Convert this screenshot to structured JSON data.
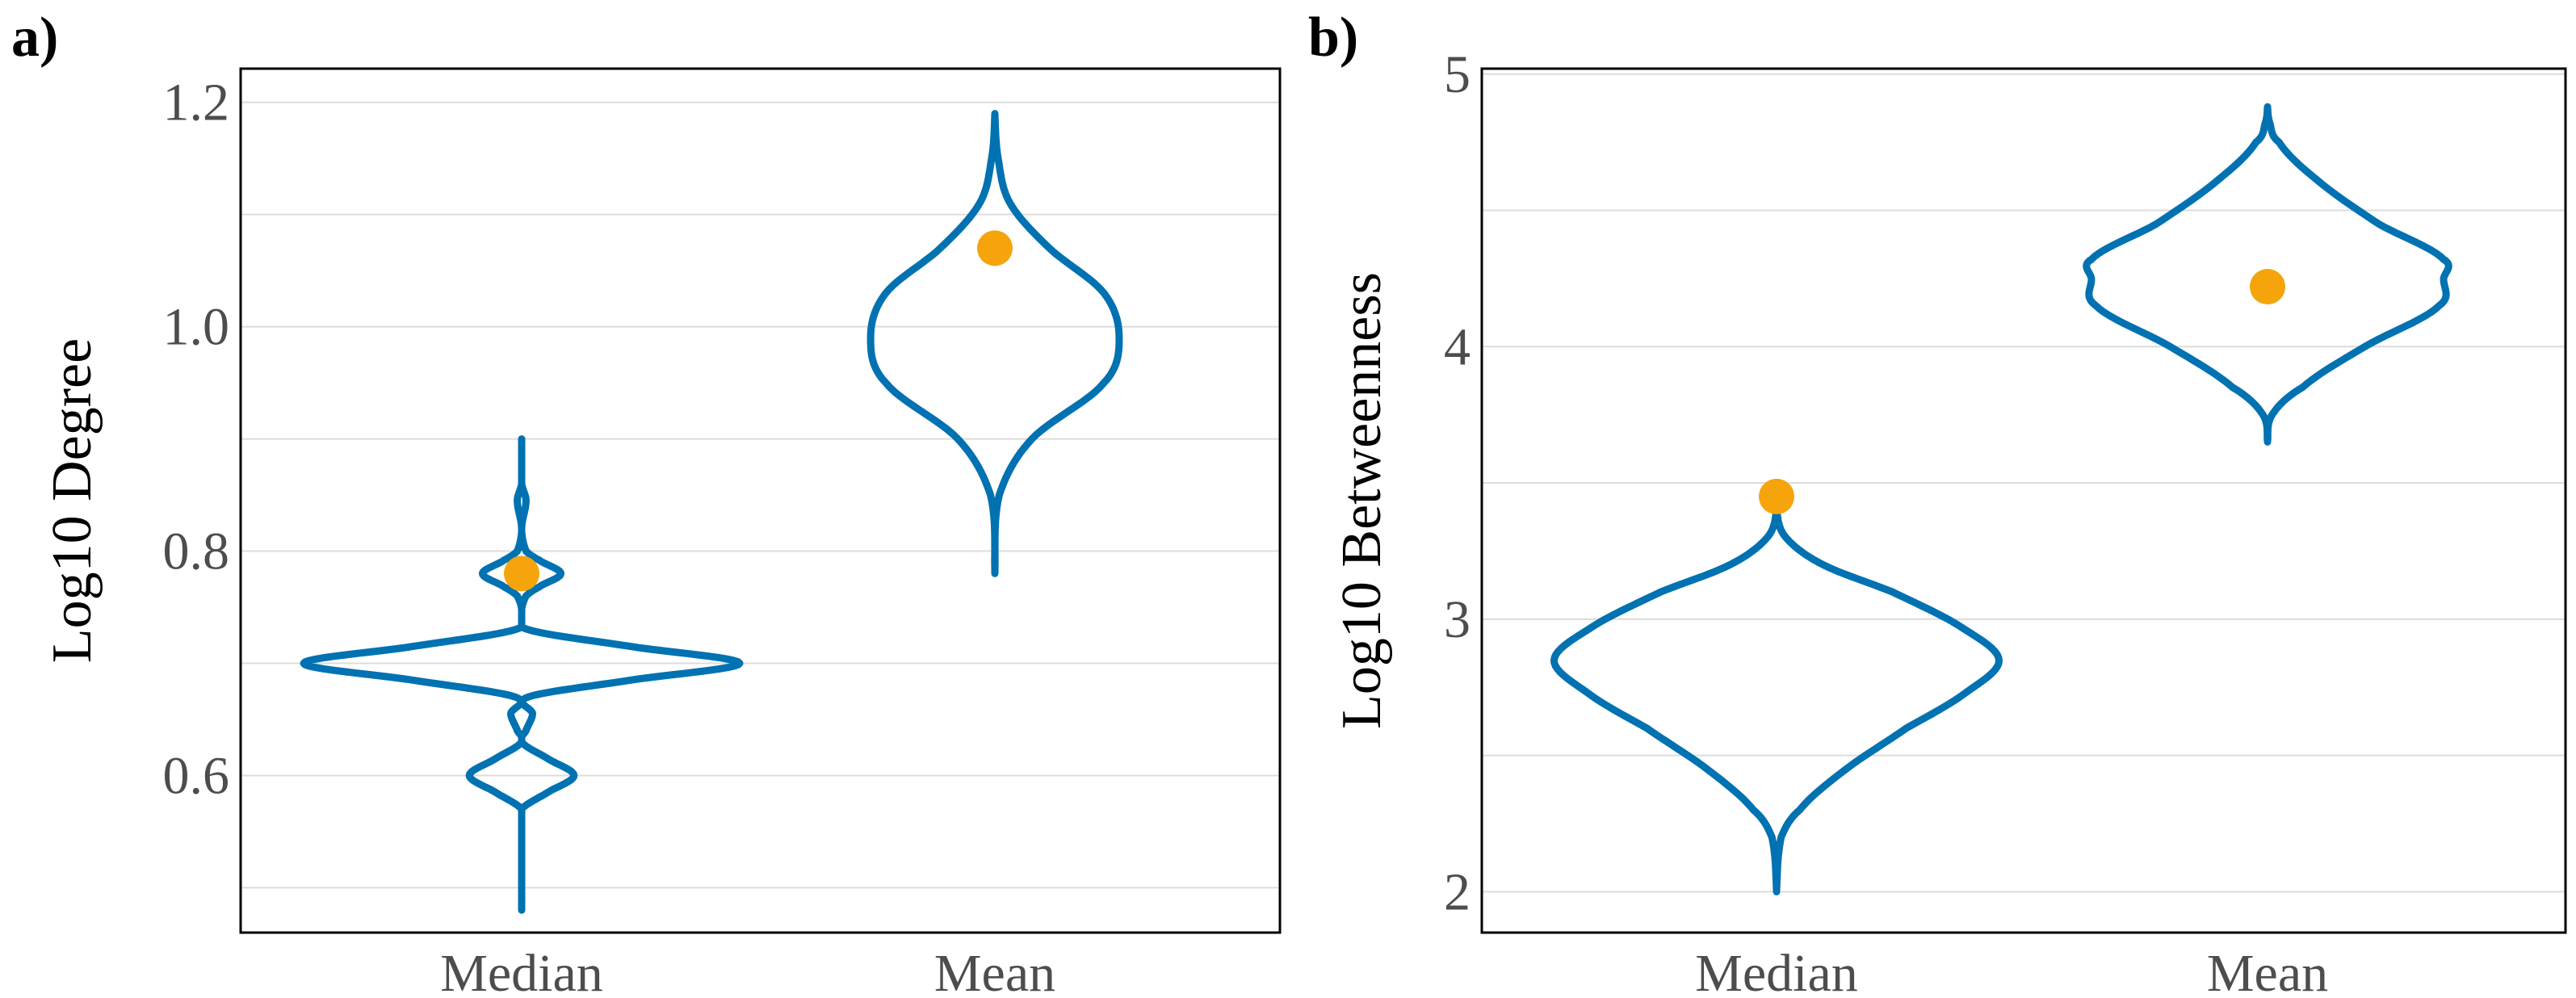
{
  "colors": {
    "violin": "#0072b2",
    "point": "#f5a40c",
    "grid": "#dcdcdc",
    "tick_text": "#4d4d4d",
    "frame": "#000000"
  },
  "chart_data": [
    {
      "panel_label": "a)",
      "type": "violin",
      "ylabel": "Log10 Degree",
      "categories": [
        "Median",
        "Mean"
      ],
      "ylim": [
        0.46,
        1.23
      ],
      "y_ticks": [
        0.6,
        0.8,
        1.0,
        1.2
      ],
      "y_tick_labels": [
        "0.6",
        "0.8",
        "1.0",
        "1.2"
      ],
      "y_minor_grid": [
        0.5,
        0.7,
        0.9,
        1.1
      ],
      "grid": true,
      "series": [
        {
          "category": "Median",
          "point_value": 0.78,
          "density": [
            [
              0.48,
              0.0
            ],
            [
              0.57,
              0.0
            ],
            [
              0.585,
              0.12
            ],
            [
              0.6,
              0.24
            ],
            [
              0.615,
              0.12
            ],
            [
              0.63,
              0.0
            ],
            [
              0.64,
              0.02
            ],
            [
              0.655,
              0.05
            ],
            [
              0.67,
              0.03
            ],
            [
              0.685,
              0.5
            ],
            [
              0.7,
              1.0
            ],
            [
              0.715,
              0.5
            ],
            [
              0.73,
              0.03
            ],
            [
              0.745,
              0.0
            ],
            [
              0.76,
              0.02
            ],
            [
              0.768,
              0.08
            ],
            [
              0.78,
              0.18
            ],
            [
              0.792,
              0.08
            ],
            [
              0.8,
              0.02
            ],
            [
              0.82,
              0.0
            ],
            [
              0.845,
              0.02
            ],
            [
              0.86,
              0.0
            ],
            [
              0.9,
              0.0
            ]
          ]
        },
        {
          "category": "Mean",
          "point_value": 1.07,
          "density": [
            [
              0.78,
              0.0
            ],
            [
              0.85,
              0.02
            ],
            [
              0.9,
              0.17
            ],
            [
              0.95,
              0.5
            ],
            [
              0.99,
              0.57
            ],
            [
              1.03,
              0.5
            ],
            [
              1.07,
              0.25
            ],
            [
              1.11,
              0.07
            ],
            [
              1.15,
              0.015
            ],
            [
              1.19,
              0.0
            ]
          ]
        }
      ]
    },
    {
      "panel_label": "b)",
      "type": "violin",
      "ylabel": "Log10 Betweenness",
      "categories": [
        "Median",
        "Mean"
      ],
      "ylim": [
        1.85,
        5.02
      ],
      "y_ticks": [
        2,
        3,
        4,
        5
      ],
      "y_tick_labels": [
        "2",
        "3",
        "4",
        "5"
      ],
      "y_minor_grid": [
        2.5,
        3.5,
        4.5
      ],
      "grid": true,
      "series": [
        {
          "category": "Median",
          "point_value": 3.45,
          "density": [
            [
              2.0,
              0.0
            ],
            [
              2.2,
              0.02
            ],
            [
              2.3,
              0.1
            ],
            [
              2.45,
              0.3
            ],
            [
              2.6,
              0.56
            ],
            [
              2.72,
              0.8
            ],
            [
              2.85,
              0.96
            ],
            [
              2.98,
              0.78
            ],
            [
              3.1,
              0.5
            ],
            [
              3.2,
              0.2
            ],
            [
              3.3,
              0.04
            ],
            [
              3.4,
              0.0
            ]
          ]
        },
        {
          "category": "Mean",
          "point_value": 4.22,
          "density": [
            [
              3.65,
              0.0
            ],
            [
              3.75,
              0.02
            ],
            [
              3.85,
              0.15
            ],
            [
              4.0,
              0.42
            ],
            [
              4.15,
              0.74
            ],
            [
              4.25,
              0.76
            ],
            [
              4.32,
              0.76
            ],
            [
              4.45,
              0.48
            ],
            [
              4.6,
              0.23
            ],
            [
              4.75,
              0.05
            ],
            [
              4.82,
              0.01
            ],
            [
              4.88,
              0.0
            ]
          ]
        }
      ]
    }
  ]
}
